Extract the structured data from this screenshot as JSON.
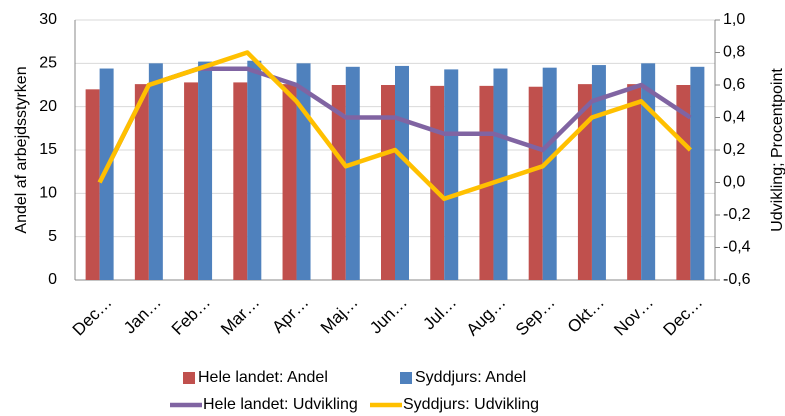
{
  "chart_data": {
    "type": "combo",
    "categories": [
      "Dec…",
      "Jan…",
      "Feb…",
      "Mar…",
      "Apr…",
      "Maj…",
      "Jun…",
      "Jul…",
      "Aug…",
      "Sep…",
      "Okt…",
      "Nov…",
      "Dec…"
    ],
    "ylabel": "Andel af arbejdsstyrken",
    "y2label": "Udvikling; Procentpoint",
    "ylim": [
      0,
      30
    ],
    "yticks": [
      0,
      5,
      10,
      15,
      20,
      25,
      30
    ],
    "y2lim": [
      -0.6,
      1.0
    ],
    "y2ticks": [
      {
        "value": 1.0,
        "label": "1,0"
      },
      {
        "value": 0.8,
        "label": "0,8"
      },
      {
        "value": 0.6,
        "label": "0,6"
      },
      {
        "value": 0.4,
        "label": "0,4"
      },
      {
        "value": 0.2,
        "label": "0,2"
      },
      {
        "value": 0.0,
        "label": "0,0"
      },
      {
        "value": -0.2,
        "label": "-0,2"
      },
      {
        "value": -0.4,
        "label": "-0,4"
      },
      {
        "value": -0.6,
        "label": "-0,6"
      }
    ],
    "grid": true,
    "series": [
      {
        "name": "Hele landet: Andel",
        "type": "bar",
        "color": "#c0504d",
        "values": [
          22.0,
          22.6,
          22.8,
          22.8,
          22.6,
          22.5,
          22.5,
          22.4,
          22.4,
          22.3,
          22.6,
          22.6,
          22.5
        ]
      },
      {
        "name": "Syddjurs: Andel",
        "type": "bar",
        "color": "#4f81bd",
        "values": [
          24.4,
          25.0,
          25.2,
          25.3,
          25.0,
          24.6,
          24.7,
          24.3,
          24.4,
          24.5,
          24.8,
          25.0,
          24.6
        ]
      },
      {
        "name": "Hele landet: Udvikling",
        "type": "line",
        "axis": "y2",
        "color": "#8064a2",
        "values": [
          0.0,
          0.6,
          0.7,
          0.7,
          0.6,
          0.4,
          0.4,
          0.3,
          0.3,
          0.2,
          0.5,
          0.6,
          0.4
        ]
      },
      {
        "name": "Syddjurs: Udvikling",
        "type": "line",
        "axis": "y2",
        "color": "#ffc000",
        "values": [
          0.0,
          0.6,
          0.7,
          0.8,
          0.5,
          0.1,
          0.2,
          -0.1,
          0.0,
          0.1,
          0.4,
          0.5,
          0.2
        ]
      }
    ]
  }
}
